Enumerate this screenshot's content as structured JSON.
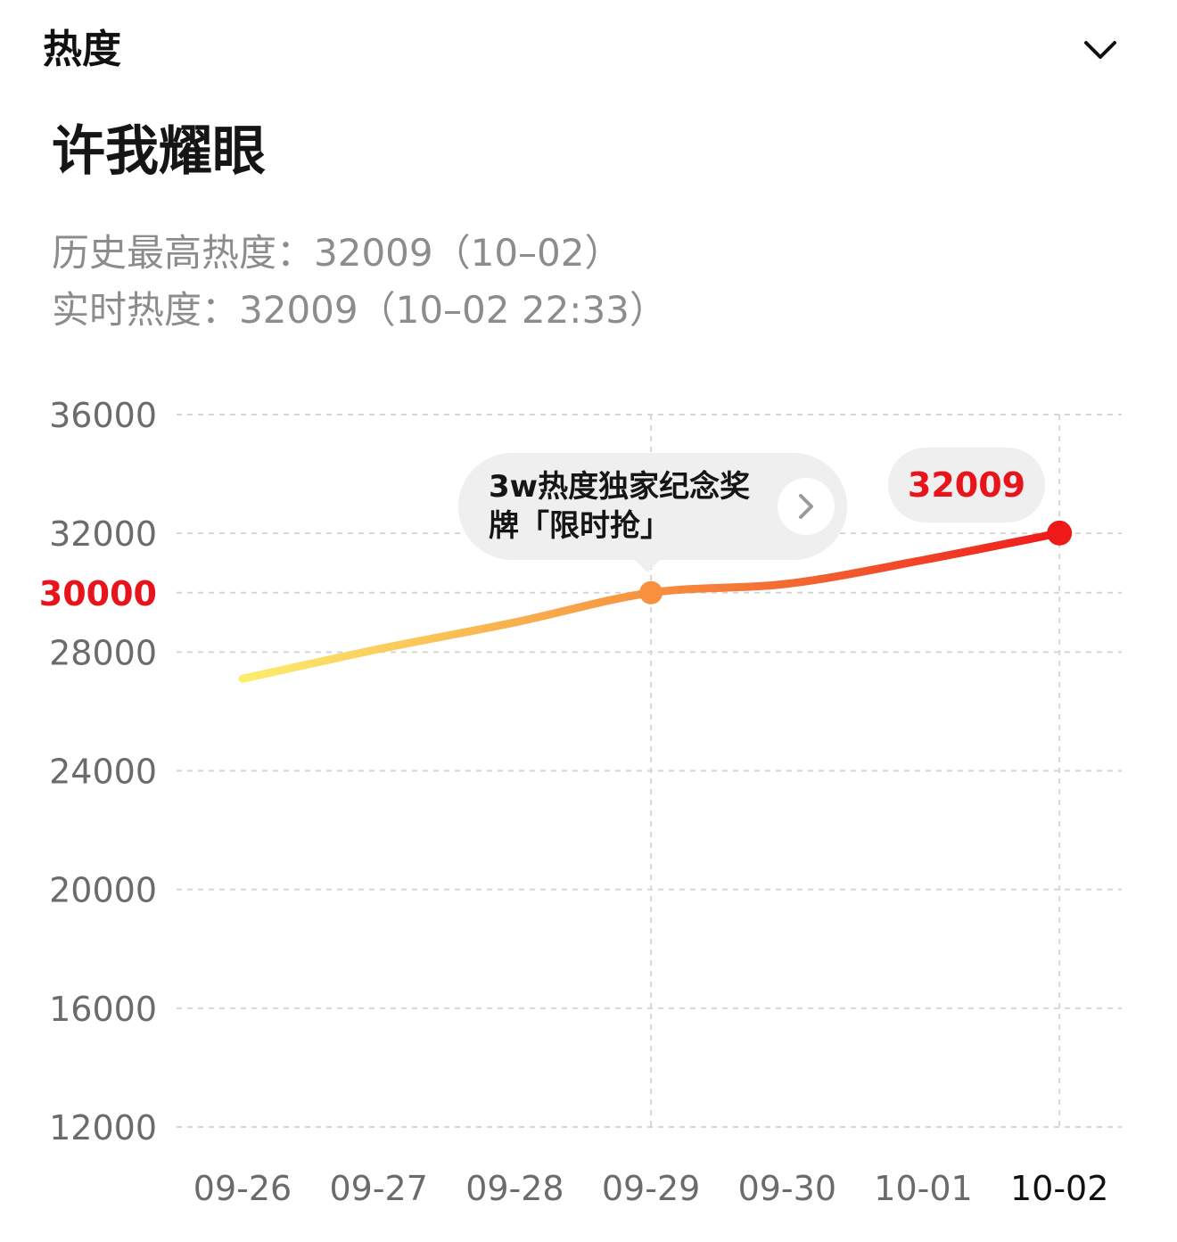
{
  "header": {
    "title": "热度",
    "collapse_icon": "chevron-down-icon"
  },
  "topic": {
    "title": "许我耀眼",
    "peak_line": "历史最高热度：32009（10–02）",
    "realtime_line": "实时热度：32009（10–02 22:33）"
  },
  "promo": {
    "text": "3w热度独家纪念奖牌「限时抢」",
    "arrow_icon": "chevron-right-icon"
  },
  "current_value_label": "32009",
  "colors": {
    "line_start": "#fbee6e",
    "line_mid": "#f7913f",
    "line_end": "#ee1a1a",
    "highlight_text": "#e8141c",
    "grid": "#d6d6d6"
  },
  "chart_data": {
    "type": "line",
    "categories": [
      "09-26",
      "09-27",
      "09-28",
      "09-29",
      "09-30",
      "10-01",
      "10-02"
    ],
    "series": [
      {
        "values": [
          27100,
          28100,
          29000,
          30000,
          30300,
          31100,
          32009
        ]
      }
    ],
    "y_ticks": [
      "36000",
      "32000",
      "30000",
      "28000",
      "24000",
      "20000",
      "16000",
      "12000"
    ],
    "highlighted_y_tick": "30000",
    "highlighted_points": [
      "09-29",
      "10-02"
    ],
    "ylim": [
      12000,
      36000
    ],
    "grid": true,
    "xlabel": "",
    "ylabel": "",
    "title": ""
  }
}
